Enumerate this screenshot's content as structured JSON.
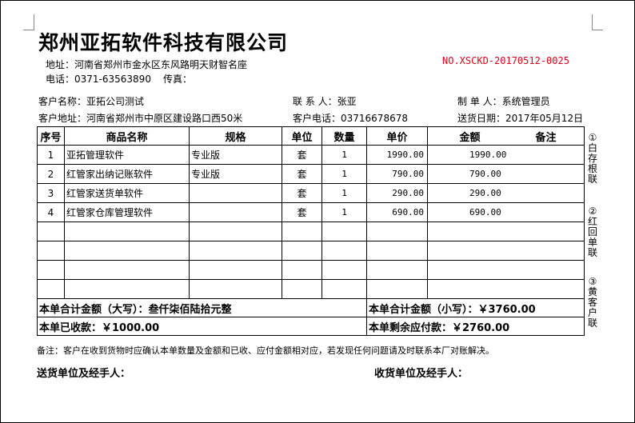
{
  "header": {
    "company": "郑州亚拓软件科技有限公司",
    "address": "地址：河南省郑州市金水区东风路明天财智名座",
    "phone": "电话：0371-63563890",
    "fax": "传真：",
    "doc_no": "NO.XSCKD-20170512-0025",
    "doc_no_color": "#e0001b"
  },
  "info": {
    "customer_name": "客户名称：亚拓公司测试",
    "contact": "联 系 人：张亚",
    "maker": "制 单 人：系统管理员",
    "customer_address": "客户地址：河南省郑州市中原区建设路口西50米",
    "customer_phone": "客户电话：03716678678",
    "delivery_date": "送货日期：2017年05月12日"
  },
  "table": {
    "headers": [
      "序号",
      "商品名称",
      "规格",
      "单位",
      "数量",
      "单价",
      "金额",
      "备注"
    ],
    "rows": [
      {
        "no": "1",
        "name": "亚拓管理软件",
        "spec": "专业版",
        "unit": "套",
        "qty": "1",
        "price": "1990.00",
        "amount": "1990.00"
      },
      {
        "no": "2",
        "name": "红管家出纳记账软件",
        "spec": "专业版",
        "unit": "套",
        "qty": "1",
        "price": "790.00",
        "amount": "790.00"
      },
      {
        "no": "3",
        "name": "红管家送货单软件",
        "spec": "",
        "unit": "套",
        "qty": "1",
        "price": "290.00",
        "amount": "290.00"
      },
      {
        "no": "4",
        "name": "红管家仓库管理软件",
        "spec": "",
        "unit": "套",
        "qty": "1",
        "price": "690.00",
        "amount": "690.00"
      }
    ],
    "total_upper": "本单合计金额（大写）：叁仟柒佰陆拾元整",
    "total_lower": "本单合计金额（小写）：￥3760.00",
    "received": "本单已收款：￥1000.00",
    "remaining": "本单剩余应付款：￥2760.00"
  },
  "copies": [
    "①白存根联",
    "②红回单联",
    "③黄客户联"
  ],
  "footer": {
    "note": "备注：客户在收到货物时应确认本单数量及金额和已收、应付金额相对应，若发现任何问题请及时联系本厂对账解决。",
    "sender": "送货单位及经手人：",
    "receiver": "收货单位及经手人："
  }
}
